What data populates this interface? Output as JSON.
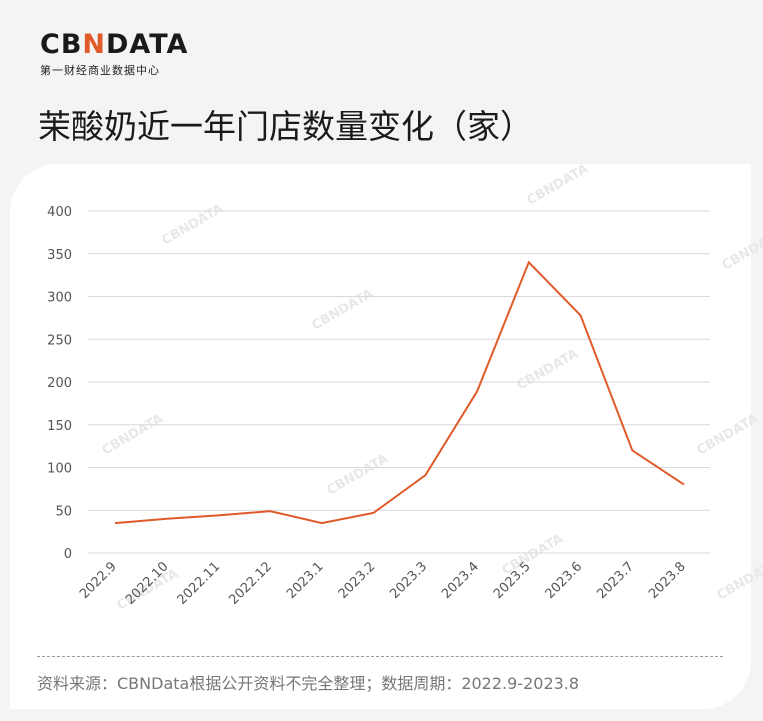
{
  "logo": {
    "brand_prefix": "CB",
    "brand_accent": "N",
    "brand_suffix": "DATA",
    "tagline": "第一财经商业数据中心"
  },
  "title": "茉酸奶近一年门店数量变化（家）",
  "source": "资料来源：CBNData根据公开资料不完全整理；数据周期：2022.9-2023.8",
  "watermark": "CBNDATA",
  "colors": {
    "line": "#e05a2a",
    "background": "#f4f4f4",
    "card": "#ffffff"
  },
  "chart_data": {
    "type": "line",
    "categories": [
      "2022.9",
      "2022.10",
      "2022.11",
      "2022.12",
      "2023.1",
      "2023.2",
      "2023.3",
      "2023.4",
      "2023.5",
      "2023.6",
      "2023.7",
      "2023.8"
    ],
    "series": [
      {
        "values": [
          35,
          40,
          44,
          49,
          35,
          47,
          91,
          189,
          340,
          278,
          120,
          80
        ]
      }
    ],
    "ylim": [
      0,
      400
    ],
    "yticks": [
      0,
      50,
      100,
      150,
      200,
      250,
      300,
      350,
      400
    ],
    "xlabel": "",
    "ylabel": "",
    "grid": true,
    "legend": "none"
  }
}
